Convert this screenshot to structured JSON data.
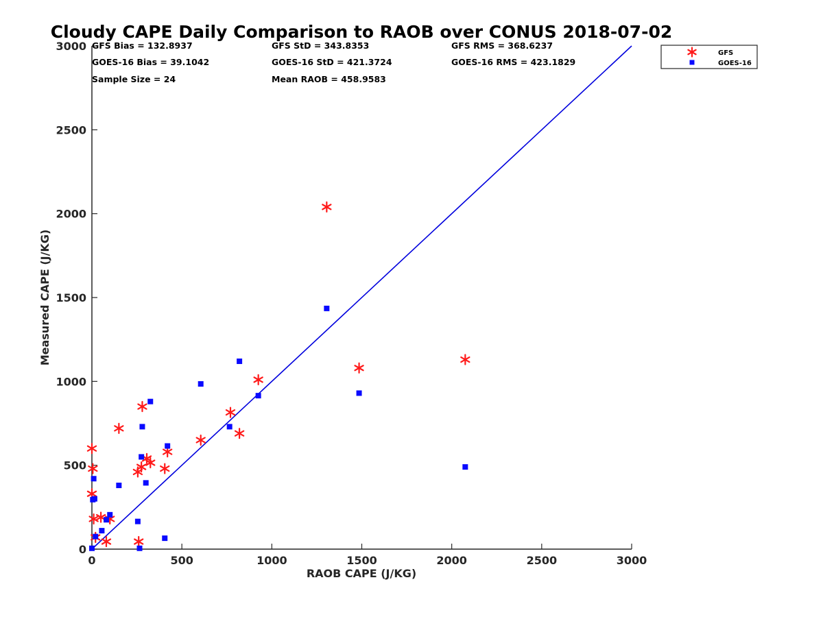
{
  "chart_data": {
    "type": "scatter",
    "title": "Cloudy CAPE Daily Comparison to RAOB over CONUS 2018-07-02",
    "xlabel": "RAOB CAPE (J/KG)",
    "ylabel": "Measured CAPE (J/KG)",
    "xlim": [
      0,
      3000
    ],
    "ylim": [
      0,
      3000
    ],
    "xticks": [
      0,
      500,
      1000,
      1500,
      2000,
      2500,
      3000
    ],
    "yticks": [
      0,
      500,
      1000,
      1500,
      2000,
      2500,
      3000
    ],
    "grid": false,
    "legend_position": "top-right, outside plot",
    "reference_line": {
      "from": [
        0,
        0
      ],
      "to": [
        3000,
        3000
      ],
      "color": "#0000dd"
    },
    "stats": [
      [
        "GFS Bias = 132.8937",
        "GFS StD = 343.8353",
        "GFS RMS = 368.6237"
      ],
      [
        "GOES-16 Bias = 39.1042",
        "GOES-16 StD = 421.3724",
        "GOES-16 RMS = 423.1829"
      ],
      [
        "Sample Size = 24",
        "Mean RAOB = 458.9583",
        ""
      ]
    ],
    "series": [
      {
        "name": "GFS",
        "marker": "asterisk",
        "color": "#ff1a1a",
        "points": [
          [
            0,
            600
          ],
          [
            0,
            330
          ],
          [
            5,
            480
          ],
          [
            10,
            180
          ],
          [
            20,
            70
          ],
          [
            50,
            190
          ],
          [
            80,
            45
          ],
          [
            100,
            180
          ],
          [
            150,
            720
          ],
          [
            255,
            460
          ],
          [
            260,
            45
          ],
          [
            275,
            490
          ],
          [
            280,
            850
          ],
          [
            305,
            540
          ],
          [
            325,
            515
          ],
          [
            405,
            480
          ],
          [
            420,
            580
          ],
          [
            605,
            650
          ],
          [
            770,
            815
          ],
          [
            820,
            690
          ],
          [
            925,
            1010
          ],
          [
            1305,
            2040
          ],
          [
            1485,
            1080
          ],
          [
            2075,
            1130
          ]
        ]
      },
      {
        "name": "GOES-16",
        "marker": "square",
        "color": "#0a0aff",
        "points": [
          [
            0,
            5
          ],
          [
            5,
            295
          ],
          [
            10,
            420
          ],
          [
            15,
            300
          ],
          [
            20,
            75
          ],
          [
            55,
            110
          ],
          [
            80,
            175
          ],
          [
            100,
            205
          ],
          [
            150,
            380
          ],
          [
            255,
            165
          ],
          [
            265,
            5
          ],
          [
            275,
            550
          ],
          [
            280,
            730
          ],
          [
            300,
            395
          ],
          [
            325,
            880
          ],
          [
            405,
            65
          ],
          [
            420,
            615
          ],
          [
            605,
            985
          ],
          [
            765,
            730
          ],
          [
            820,
            1120
          ],
          [
            925,
            915
          ],
          [
            1305,
            1435
          ],
          [
            1485,
            930
          ],
          [
            2075,
            490
          ]
        ]
      }
    ]
  }
}
